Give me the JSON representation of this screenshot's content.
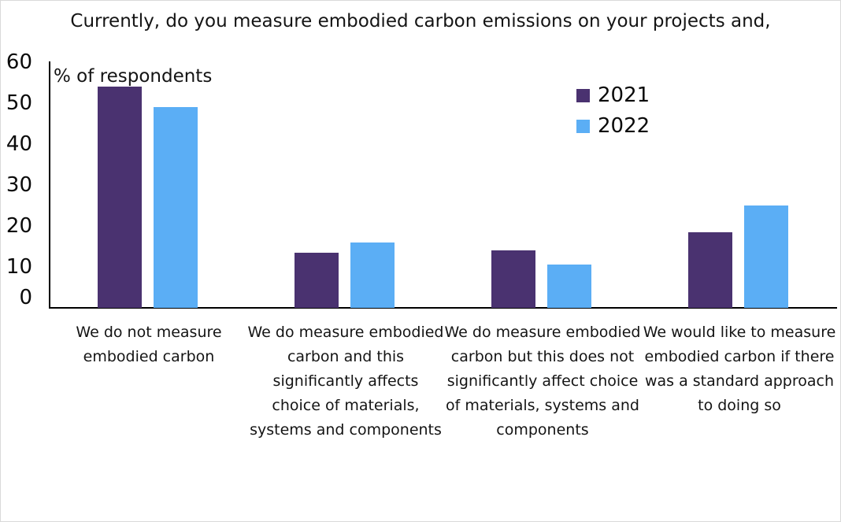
{
  "window": {
    "background": "#ffffff",
    "border_color": "#d9d9d9"
  },
  "chart_data": {
    "type": "bar",
    "title": "Currently, do you measure embodied carbon emissions on your projects and,",
    "ylabel": "% of respondents",
    "xlabel": "",
    "ylim": [
      0,
      60
    ],
    "yticks": [
      0,
      10,
      20,
      30,
      40,
      50,
      60
    ],
    "grid": false,
    "legend_position": "top-right",
    "categories": [
      "We do not measure embodied carbon",
      "We do measure embodied carbon and this significantly affects choice of materials, systems and components",
      "We do measure embodied carbon but this does not significantly affect choice of materials, systems and components",
      "We would like to measure embodied carbon if there was a standard approach to doing so"
    ],
    "series": [
      {
        "name": "2021",
        "color": "#4A3270",
        "values": [
          54,
          13.5,
          14,
          18.5
        ]
      },
      {
        "name": "2022",
        "color": "#5BAEF5",
        "values": [
          49,
          16,
          10.5,
          25
        ]
      }
    ],
    "axis_color": "#000000",
    "text_color": "#141414"
  }
}
